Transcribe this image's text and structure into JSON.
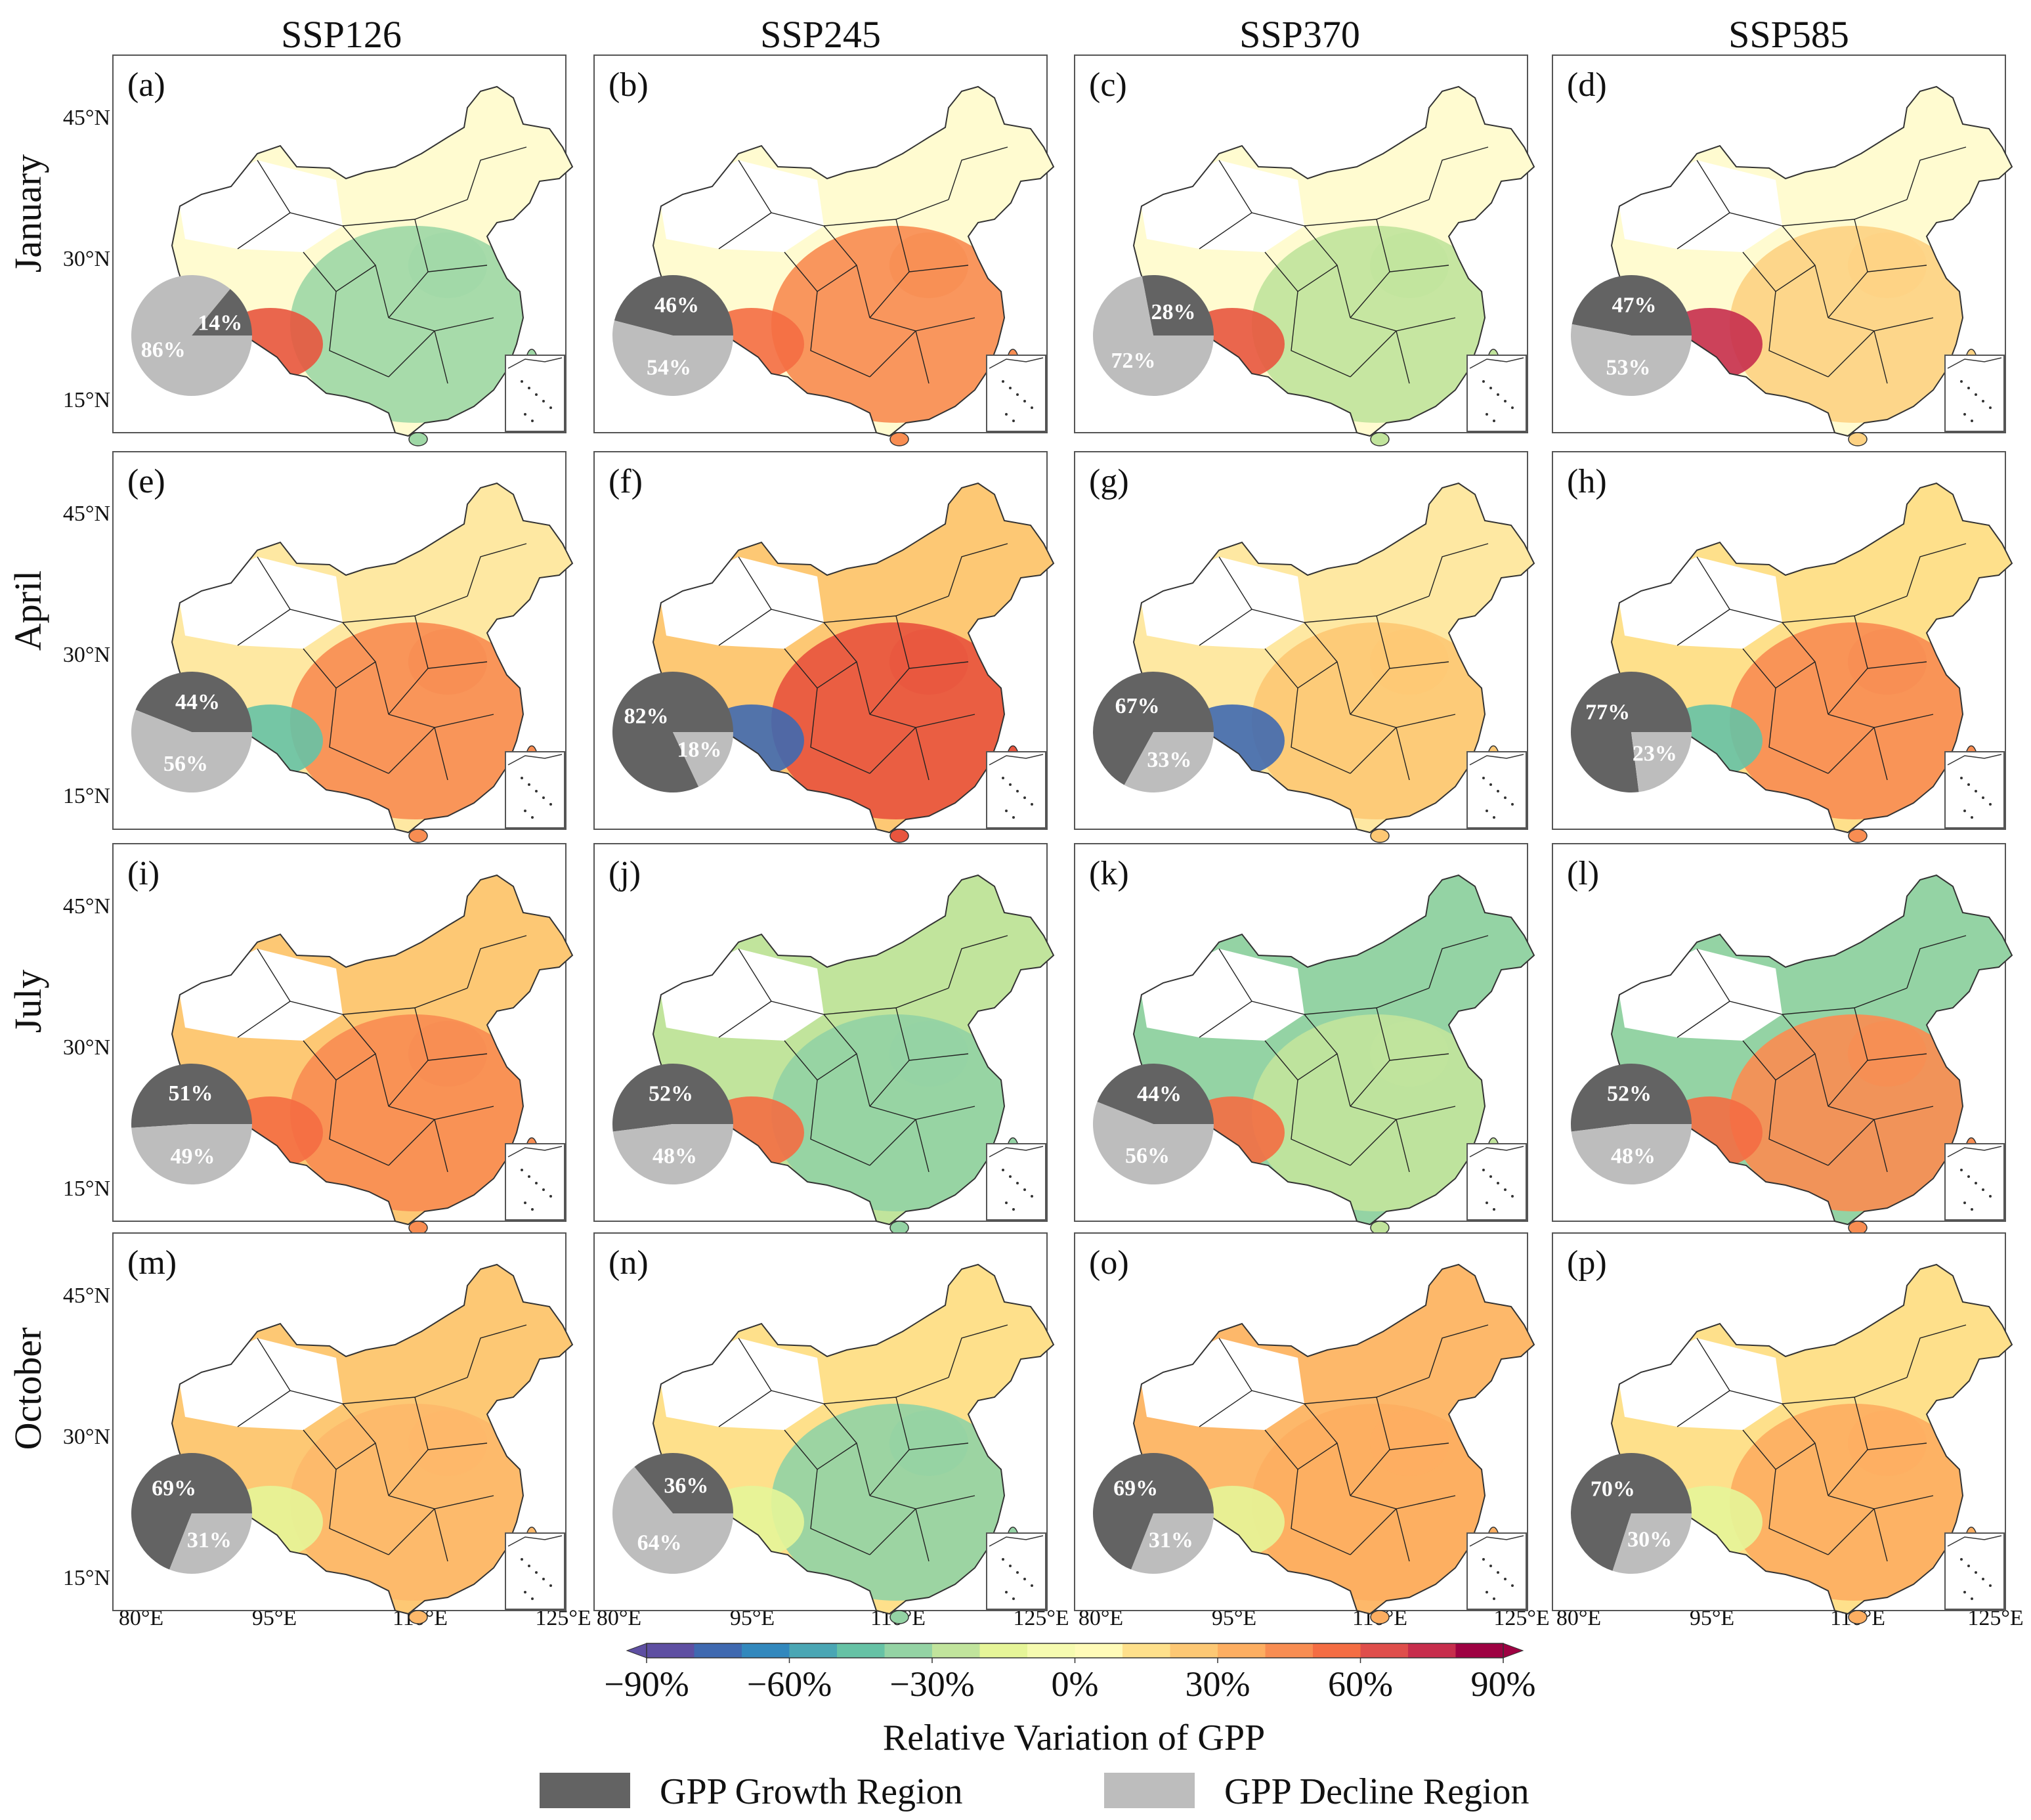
{
  "chart_data": {
    "type": "pie",
    "figure_kind": "4x4 grid of maps of China, each with an inset pie chart",
    "columns": [
      "SSP126",
      "SSP245",
      "SSP370",
      "SSP585"
    ],
    "rows": [
      "January",
      "April",
      "July",
      "October"
    ],
    "lat_ticks": [
      "45°N",
      "30°N",
      "15°N"
    ],
    "lon_ticks": [
      "80°E",
      "95°E",
      "110°E",
      "125°E"
    ],
    "colorbar": {
      "label": "Relative Variation of GPP",
      "range": [
        -90,
        90
      ],
      "ticks": [
        "−90%",
        "−60%",
        "−30%",
        "0%",
        "30%",
        "60%",
        "90%"
      ],
      "colors": [
        "#5e4fa2",
        "#3f69b0",
        "#3288bd",
        "#4aa6b4",
        "#66c2a5",
        "#94d3a4",
        "#c1e49c",
        "#e6f598",
        "#f6fbb0",
        "#fffbb8",
        "#fee08b",
        "#fdc874",
        "#fdae61",
        "#f88d52",
        "#f46d43",
        "#df4e4b",
        "#c72d4c",
        "#9e0142"
      ],
      "extend": "both"
    },
    "legend": {
      "growth": {
        "label": "GPP Growth Region",
        "color": "#636363"
      },
      "decline": {
        "label": "GPP Decline Region",
        "color": "#bdbdbd"
      }
    },
    "panels": [
      {
        "label": "(a)",
        "growth": 14,
        "decline": 86,
        "growth_text": "14%",
        "decline_text": "86%"
      },
      {
        "label": "(b)",
        "growth": 46,
        "decline": 54,
        "growth_text": "46%",
        "decline_text": "54%"
      },
      {
        "label": "(c)",
        "growth": 28,
        "decline": 72,
        "growth_text": "28%",
        "decline_text": "72%"
      },
      {
        "label": "(d)",
        "growth": 47,
        "decline": 53,
        "growth_text": "47%",
        "decline_text": "53%"
      },
      {
        "label": "(e)",
        "growth": 44,
        "decline": 56,
        "growth_text": "44%",
        "decline_text": "56%"
      },
      {
        "label": "(f)",
        "growth": 82,
        "decline": 18,
        "growth_text": "82%",
        "decline_text": "18%"
      },
      {
        "label": "(g)",
        "growth": 67,
        "decline": 33,
        "growth_text": "67%",
        "decline_text": "33%"
      },
      {
        "label": "(h)",
        "growth": 77,
        "decline": 23,
        "growth_text": "77%",
        "decline_text": "23%"
      },
      {
        "label": "(i)",
        "growth": 51,
        "decline": 49,
        "growth_text": "51%",
        "decline_text": "49%"
      },
      {
        "label": "(j)",
        "growth": 52,
        "decline": 48,
        "growth_text": "52%",
        "decline_text": "48%"
      },
      {
        "label": "(k)",
        "growth": 44,
        "decline": 56,
        "growth_text": "44%",
        "decline_text": "56%"
      },
      {
        "label": "(l)",
        "growth": 52,
        "decline": 48,
        "growth_text": "52%",
        "decline_text": "48%"
      },
      {
        "label": "(m)",
        "growth": 69,
        "decline": 31,
        "growth_text": "69%",
        "decline_text": "31%"
      },
      {
        "label": "(n)",
        "growth": 36,
        "decline": 64,
        "growth_text": "36%",
        "decline_text": "64%"
      },
      {
        "label": "(o)",
        "growth": 69,
        "decline": 31,
        "growth_text": "69%",
        "decline_text": "31%"
      },
      {
        "label": "(p)",
        "growth": 70,
        "decline": 30,
        "growth_text": "70%",
        "decline_text": "30%"
      }
    ],
    "map_fill": [
      {
        "south": "#9fd8a6",
        "north": "#fffbd0",
        "southwest": "#e8553e"
      },
      {
        "south": "#f88d52",
        "north": "#fffbd0",
        "southwest": "#f46d43"
      },
      {
        "south": "#c1e49c",
        "north": "#fffbd0",
        "southwest": "#e8553e"
      },
      {
        "south": "#fdd283",
        "north": "#fffbd0",
        "southwest": "#c72d4c"
      },
      {
        "south": "#f88d52",
        "north": "#fee8a2",
        "southwest": "#66c2a5"
      },
      {
        "south": "#e8553e",
        "north": "#fdc874",
        "southwest": "#3f69b0"
      },
      {
        "south": "#fdc874",
        "north": "#fee8a2",
        "southwest": "#3f69b0"
      },
      {
        "south": "#f88d52",
        "north": "#fee08b",
        "southwest": "#66c2a5"
      },
      {
        "south": "#f88d52",
        "north": "#fdc874",
        "southwest": "#f46d43"
      },
      {
        "south": "#94d3a4",
        "north": "#c1e49c",
        "southwest": "#f46d43"
      },
      {
        "south": "#c1e49c",
        "north": "#94d3a4",
        "southwest": "#f46d43"
      },
      {
        "south": "#f88d52",
        "north": "#94d3a4",
        "southwest": "#f46d43"
      },
      {
        "south": "#fdb86a",
        "north": "#fdc874",
        "southwest": "#e6f598"
      },
      {
        "south": "#94d3a4",
        "north": "#fee08b",
        "southwest": "#e6f598"
      },
      {
        "south": "#fdae61",
        "north": "#fdb86a",
        "southwest": "#e6f598"
      },
      {
        "south": "#fdae61",
        "north": "#fee08b",
        "southwest": "#e6f598"
      }
    ]
  }
}
